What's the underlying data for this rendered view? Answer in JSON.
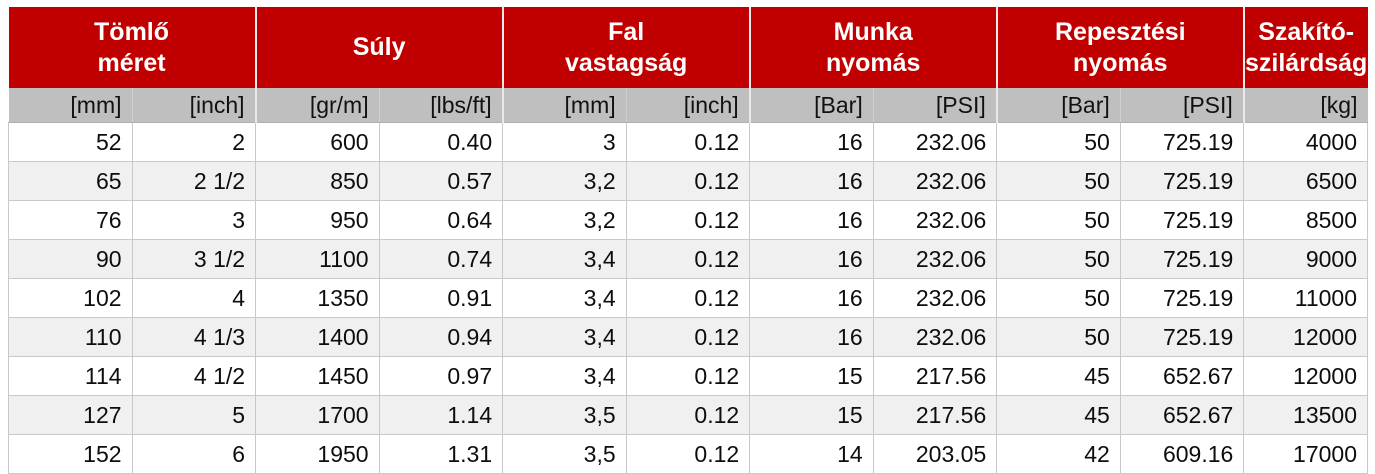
{
  "table": {
    "title_semantic": "hose-specification-table",
    "colors": {
      "header_bg": "#C00000",
      "header_text": "#FFFFFF",
      "units_bg": "#BFBFBF",
      "units_text": "#111111",
      "row_bg": "#FFFFFF",
      "row_alt_bg": "#F0F0F0",
      "grid": "#C9C9C9"
    },
    "groups": [
      {
        "label": "Tömlő méret",
        "line1": "Tömlő",
        "line2": "méret",
        "span": 2
      },
      {
        "label": "Súly",
        "line1": "Súly",
        "span": 2
      },
      {
        "label": "Fal vastagság",
        "line1": "Fal",
        "line2": "vastagság",
        "span": 2
      },
      {
        "label": "Munka nyomás",
        "line1": "Munka",
        "line2": "nyomás",
        "span": 2
      },
      {
        "label": "Repesztési nyomás",
        "line1": "Repesztési",
        "line2": "nyomás",
        "span": 2
      },
      {
        "label": "Szakító-szilárdság",
        "line1": "Szakító-",
        "line2": "szilárdság",
        "span": 1
      }
    ],
    "units": [
      "[mm]",
      "[inch]",
      "[gr/m]",
      "[lbs/ft]",
      "[mm]",
      "[inch]",
      "[Bar]",
      "[PSI]",
      "[Bar]",
      "[PSI]",
      "[kg]"
    ],
    "rows": [
      [
        "52",
        "2",
        "600",
        "0.40",
        "3",
        "0.12",
        "16",
        "232.06",
        "50",
        "725.19",
        "4000"
      ],
      [
        "65",
        "2 1/2",
        "850",
        "0.57",
        "3,2",
        "0.12",
        "16",
        "232.06",
        "50",
        "725.19",
        "6500"
      ],
      [
        "76",
        "3",
        "950",
        "0.64",
        "3,2",
        "0.12",
        "16",
        "232.06",
        "50",
        "725.19",
        "8500"
      ],
      [
        "90",
        "3 1/2",
        "1100",
        "0.74",
        "3,4",
        "0.12",
        "16",
        "232.06",
        "50",
        "725.19",
        "9000"
      ],
      [
        "102",
        "4",
        "1350",
        "0.91",
        "3,4",
        "0.12",
        "16",
        "232.06",
        "50",
        "725.19",
        "11000"
      ],
      [
        "110",
        "4 1/3",
        "1400",
        "0.94",
        "3,4",
        "0.12",
        "16",
        "232.06",
        "50",
        "725.19",
        "12000"
      ],
      [
        "114",
        "4 1/2",
        "1450",
        "0.97",
        "3,4",
        "0.12",
        "15",
        "217.56",
        "45",
        "652.67",
        "12000"
      ],
      [
        "127",
        "5",
        "1700",
        "1.14",
        "3,5",
        "0.12",
        "15",
        "217.56",
        "45",
        "652.67",
        "13500"
      ],
      [
        "152",
        "6",
        "1950",
        "1.31",
        "3,5",
        "0.12",
        "14",
        "203.05",
        "42",
        "609.16",
        "17000"
      ]
    ]
  }
}
